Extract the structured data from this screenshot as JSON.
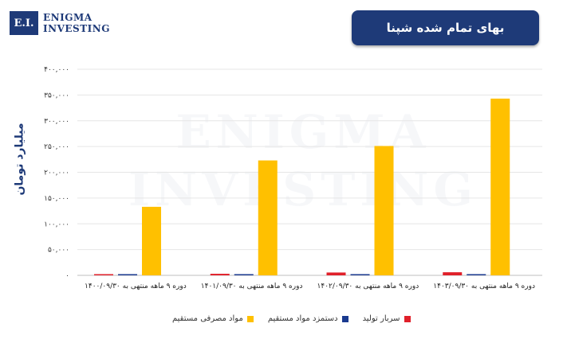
{
  "logo": {
    "mark": "E.I.",
    "line1": "Enigma",
    "line2": "Investing"
  },
  "header": {
    "title": "بهای تمام شده شپنا"
  },
  "colors": {
    "brand": "#1e3a78",
    "series": [
      "#e0202a",
      "#1a3a8f",
      "#ffc000"
    ]
  },
  "chart_data": {
    "type": "bar",
    "ylabel": "میلیارد تومان",
    "ylim": [
      0,
      400000
    ],
    "yticks": [
      "۰",
      "۵۰,۰۰۰",
      "۱۰۰,۰۰۰",
      "۱۵۰,۰۰۰",
      "۲۰۰,۰۰۰",
      "۲۵۰,۰۰۰",
      "۳۰۰,۰۰۰",
      "۳۵۰,۰۰۰",
      "۴۰۰,۰۰۰"
    ],
    "categories": [
      "دوره ۹ ماهه منتهی به ۱۴۰۰/۰۹/۳۰",
      "دوره ۹ ماهه منتهی به ۱۴۰۱/۰۹/۳۰",
      "دوره ۹ ماهه منتهی به ۱۴۰۲/۰۹/۳۰",
      "دوره ۹ ماهه منتهی به ۱۴۰۳/۰۹/۳۰"
    ],
    "series": [
      {
        "name": "سربار تولید",
        "values": [
          1500,
          3000,
          5500,
          6000
        ]
      },
      {
        "name": "دستمزد مواد مستقیم",
        "values": [
          800,
          1000,
          1200,
          1500
        ]
      },
      {
        "name": "مواد مصرفی مستقیم",
        "values": [
          133000,
          223000,
          251000,
          343000
        ]
      }
    ],
    "grid": true,
    "legend": "bottom"
  }
}
